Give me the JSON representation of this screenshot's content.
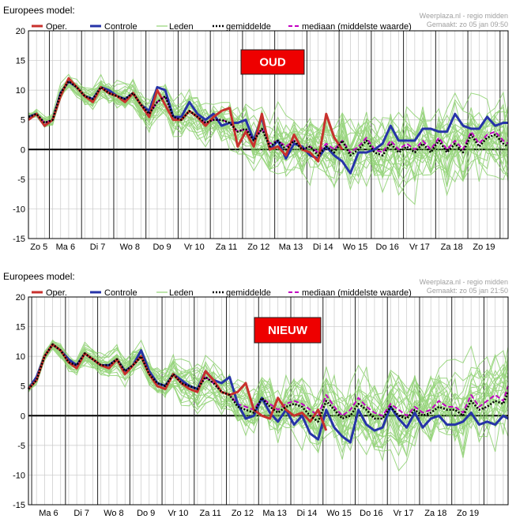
{
  "colors": {
    "oper": "#c8312d",
    "controle": "#2633a8",
    "leden": "#7ccb5a",
    "gemiddelde": "#000000",
    "mediaan": "#c200c2",
    "badge": "#ee0000",
    "grid_major": "#222222",
    "grid_minor": "#c8c8c8"
  },
  "legend": {
    "oper": "Oper.",
    "controle": "Controle",
    "leden": "Leden",
    "gemiddelde": "gemiddelde",
    "mediaan": "mediaan (middelste waarde)"
  },
  "chart_data": [
    {
      "type": "line",
      "title": "Europees model:",
      "badge": "OUD",
      "source": "Weerplaza.nl - regio midden",
      "issued": "Gemaakt: zo 05 jan 09:50",
      "ylim": [
        -15,
        20
      ],
      "yticks": [
        20,
        15,
        10,
        5,
        0,
        -5,
        -10,
        -15
      ],
      "xlim": [
        0,
        14.9
      ],
      "day_labels": [
        "Zo 5",
        "Ma 6",
        "Di 7",
        "Wo 8",
        "Do 9",
        "Vr 10",
        "Za 11",
        "Zo 12",
        "Ma 13",
        "Di 14",
        "Wo 15",
        "Do 16",
        "Vr 17",
        "Za 18",
        "Zo 19"
      ],
      "major_x": [
        0.65,
        1.65,
        2.65,
        3.65,
        4.65,
        5.65,
        6.65,
        7.65,
        8.65,
        9.65,
        10.65,
        11.65,
        12.65,
        13.65,
        14.65
      ],
      "series": [
        {
          "name": "Oper.",
          "x": [
            0,
            0.25,
            0.5,
            0.75,
            1,
            1.25,
            1.5,
            1.75,
            2,
            2.25,
            2.5,
            2.75,
            3,
            3.25,
            3.5,
            3.75,
            4,
            4.25,
            4.5,
            4.75,
            5,
            5.25,
            5.5,
            5.75,
            6,
            6.25,
            6.5,
            6.75,
            7,
            7.25,
            7.5,
            7.75,
            8,
            8.25,
            8.5,
            8.75,
            9,
            9.25,
            9.5,
            9.75
          ],
          "values": [
            5,
            6,
            4,
            5,
            9,
            12,
            10.5,
            9,
            8,
            10.5,
            9.5,
            9,
            8,
            9.5,
            7.5,
            5.5,
            10,
            7.5,
            5,
            5,
            6.5,
            5.5,
            4,
            5.5,
            6.5,
            7,
            0.5,
            3,
            0.5,
            6,
            0,
            0.5,
            -1,
            2.5,
            0,
            -0.5,
            -2,
            6,
            2,
            0
          ]
        },
        {
          "name": "Controle",
          "x": [
            0,
            0.25,
            0.5,
            0.75,
            1,
            1.25,
            1.5,
            1.75,
            2,
            2.25,
            2.5,
            2.75,
            3,
            3.25,
            3.5,
            3.75,
            4,
            4.25,
            4.5,
            4.75,
            5,
            5.25,
            5.5,
            5.75,
            6,
            6.25,
            6.5,
            6.75,
            7,
            7.25,
            7.5,
            7.75,
            8,
            8.25,
            8.5,
            8.75,
            9,
            9.25,
            9.5,
            9.75,
            10,
            10.25,
            10.5,
            10.75,
            11,
            11.25,
            11.5,
            11.75,
            12,
            12.25,
            12.5,
            12.75,
            13,
            13.25,
            13.5,
            13.75,
            14,
            14.25,
            14.5,
            14.75,
            14.9
          ],
          "values": [
            5.5,
            6,
            4,
            5,
            9.5,
            11.5,
            10.5,
            9,
            8.5,
            10.5,
            10,
            9,
            8.5,
            9.5,
            7.5,
            6.5,
            10.5,
            10,
            5.5,
            5.5,
            8,
            6,
            5,
            6,
            4,
            4.5,
            4.5,
            5,
            1.5,
            5.5,
            0,
            1.5,
            -1.5,
            1,
            0.5,
            -1,
            -1.5,
            0.5,
            -1,
            -2,
            -4,
            -0.5,
            -0.5,
            0,
            1,
            4,
            1.5,
            1.5,
            1.5,
            3.5,
            3.5,
            3,
            3,
            6,
            4,
            3.5,
            3.5,
            5.5,
            4,
            4.5,
            4.5
          ]
        },
        {
          "name": "gemiddelde",
          "x": [
            0,
            0.25,
            0.5,
            0.75,
            1,
            1.25,
            1.5,
            1.75,
            2,
            2.25,
            2.5,
            2.75,
            3,
            3.25,
            3.5,
            3.75,
            4,
            4.25,
            4.5,
            4.75,
            5,
            5.25,
            5.5,
            5.75,
            6,
            6.25,
            6.5,
            6.75,
            7,
            7.25,
            7.5,
            7.75,
            8,
            8.25,
            8.5,
            8.75,
            9,
            9.25,
            9.5,
            9.75,
            10,
            10.25,
            10.5,
            10.75,
            11,
            11.25,
            11.5,
            11.75,
            12,
            12.25,
            12.5,
            12.75,
            13,
            13.25,
            13.5,
            13.75,
            14,
            14.25,
            14.5,
            14.75,
            14.9
          ],
          "values": [
            5.5,
            6,
            4.5,
            5,
            9.5,
            11.5,
            10.5,
            9,
            8.5,
            10.5,
            9.5,
            9,
            8.5,
            9.5,
            7.5,
            6,
            8,
            9,
            5.5,
            5,
            6.5,
            5.5,
            4.5,
            5,
            5,
            4.5,
            3,
            3.5,
            1.5,
            3.5,
            0.5,
            1.5,
            0,
            1.5,
            0,
            0.5,
            -1,
            0.5,
            -0.5,
            1.5,
            -1,
            0,
            1.5,
            -0.5,
            -1,
            1,
            -0.5,
            0.5,
            -0.5,
            1,
            -0.5,
            1.5,
            -0.5,
            1,
            -0.5,
            2.5,
            0.5,
            2,
            2.5,
            1,
            0.5
          ]
        },
        {
          "name": "mediaan (middelste waarde)",
          "x": [
            0,
            0.25,
            0.5,
            0.75,
            1,
            1.25,
            1.5,
            1.75,
            2,
            2.25,
            2.5,
            2.75,
            3,
            3.25,
            3.5,
            3.75,
            4,
            4.25,
            4.5,
            4.75,
            5,
            5.25,
            5.5,
            5.75,
            6,
            6.25,
            6.5,
            6.75,
            7,
            7.25,
            7.5,
            7.75,
            8,
            8.25,
            8.5,
            8.75,
            9,
            9.25,
            9.5,
            9.75,
            10,
            10.25,
            10.5,
            10.75,
            11,
            11.25,
            11.5,
            11.75,
            12,
            12.25,
            12.5,
            12.75,
            13,
            13.25,
            13.5,
            13.75,
            14,
            14.25,
            14.5,
            14.75,
            14.9
          ],
          "values": [
            5.5,
            6,
            4.5,
            5,
            9.5,
            11.5,
            10.5,
            9,
            8.5,
            10.5,
            9.5,
            9,
            8.5,
            9.5,
            7.5,
            6,
            8,
            9,
            5.5,
            5,
            6.5,
            5.5,
            4.5,
            5,
            5,
            4.5,
            3,
            3.5,
            1.5,
            3.5,
            1,
            1.5,
            0.5,
            1.5,
            0,
            0.5,
            -0.5,
            1,
            0,
            1.5,
            -0.5,
            0.5,
            2,
            0,
            -0.5,
            1.5,
            0,
            1,
            0,
            1.5,
            0,
            2,
            0,
            1.5,
            0,
            3,
            1,
            2.5,
            3,
            1.5,
            1
          ]
        }
      ]
    },
    {
      "type": "line",
      "title": "Europees model:",
      "badge": "NIEUW",
      "source": "Weerplaza.nl - regio midden",
      "issued": "Gemaakt: zo 05 jan 21:50",
      "ylim": [
        -15,
        20
      ],
      "yticks": [
        20,
        15,
        10,
        5,
        0,
        -5,
        -10,
        -15
      ],
      "xlim": [
        0,
        14.9
      ],
      "day_labels": [
        "Ma 6",
        "Di 7",
        "Wo 8",
        "Do 9",
        "Vr 10",
        "Za 11",
        "Zo 12",
        "Ma 13",
        "Di 14",
        "Wo 15",
        "Do 16",
        "Vr 17",
        "Za 18",
        "Zo 19"
      ],
      "major_x": [
        0.1,
        1.15,
        2.15,
        3.15,
        4.15,
        5.15,
        6.15,
        7.15,
        8.15,
        9.15,
        10.15,
        11.15,
        12.15,
        13.15,
        14.15
      ],
      "series": [
        {
          "name": "Oper.",
          "x": [
            0,
            0.25,
            0.5,
            0.75,
            1,
            1.25,
            1.5,
            1.75,
            2,
            2.25,
            2.5,
            2.75,
            3,
            3.25,
            3.5,
            3.75,
            4,
            4.25,
            4.5,
            4.75,
            5,
            5.25,
            5.5,
            5.75,
            6,
            6.25,
            6.5,
            6.75,
            7,
            7.25,
            7.5,
            7.75,
            8,
            8.25,
            8.5,
            8.75,
            9,
            9.25
          ],
          "values": [
            4.5,
            6,
            10,
            12,
            11,
            9,
            8,
            10.5,
            9.5,
            8.5,
            8,
            9.5,
            7,
            8.5,
            10,
            7,
            5,
            4.5,
            7,
            5.5,
            4.5,
            4,
            7.5,
            6,
            4,
            3.5,
            4,
            5.5,
            1,
            0,
            -0.5,
            3,
            1,
            0,
            0.5,
            -1,
            1,
            -2.5
          ]
        },
        {
          "name": "Controle",
          "x": [
            0,
            0.25,
            0.5,
            0.75,
            1,
            1.25,
            1.5,
            1.75,
            2,
            2.25,
            2.5,
            2.75,
            3,
            3.25,
            3.5,
            3.75,
            4,
            4.25,
            4.5,
            4.75,
            5,
            5.25,
            5.5,
            5.75,
            6,
            6.25,
            6.5,
            6.75,
            7,
            7.25,
            7.5,
            7.75,
            8,
            8.25,
            8.5,
            8.75,
            9,
            9.25,
            9.5,
            9.75,
            10,
            10.25,
            10.5,
            10.75,
            11,
            11.25,
            11.5,
            11.75,
            12,
            12.25,
            12.5,
            12.75,
            13,
            13.25,
            13.5,
            13.75,
            14,
            14.25,
            14.5,
            14.75,
            14.9
          ],
          "values": [
            4.5,
            6.5,
            10,
            12,
            11,
            9.5,
            8.5,
            10.5,
            9.5,
            8.5,
            8.5,
            9.5,
            7.5,
            8.5,
            11,
            7.5,
            5.5,
            5,
            7,
            6,
            5,
            4.5,
            7.5,
            6,
            5.5,
            6.5,
            2,
            -0.5,
            0,
            3,
            0.5,
            -1,
            1,
            -1.5,
            0,
            -3,
            -4,
            1,
            -2,
            -3.5,
            -4.5,
            1,
            -1.5,
            -2.5,
            -2,
            1.5,
            -0.5,
            -2,
            0.5,
            -2,
            -0.5,
            0,
            -1.5,
            -1.5,
            -1,
            0.5,
            -1.5,
            -1,
            -1.5,
            0,
            -0.5
          ]
        },
        {
          "name": "gemiddelde",
          "x": [
            0,
            0.25,
            0.5,
            0.75,
            1,
            1.25,
            1.5,
            1.75,
            2,
            2.25,
            2.5,
            2.75,
            3,
            3.25,
            3.5,
            3.75,
            4,
            4.25,
            4.5,
            4.75,
            5,
            5.25,
            5.5,
            5.75,
            6,
            6.25,
            6.5,
            6.75,
            7,
            7.25,
            7.5,
            7.75,
            8,
            8.25,
            8.5,
            8.75,
            9,
            9.25,
            9.5,
            9.75,
            10,
            10.25,
            10.5,
            10.75,
            11,
            11.25,
            11.5,
            11.75,
            12,
            12.25,
            12.5,
            12.75,
            13,
            13.25,
            13.5,
            13.75,
            14,
            14.25,
            14.5,
            14.75,
            14.9
          ],
          "values": [
            4.5,
            6,
            10,
            12,
            11,
            9,
            8.5,
            10.5,
            9.5,
            8.5,
            8.5,
            9.5,
            7.5,
            8.5,
            10,
            7,
            5.5,
            5,
            7,
            5.5,
            5,
            4.5,
            6.5,
            5.5,
            4,
            3.5,
            1.5,
            1,
            0.5,
            3,
            1.5,
            0.5,
            1.5,
            2,
            1.5,
            0,
            -1,
            2.5,
            1,
            -0.5,
            0,
            2,
            1,
            -0.5,
            -0.5,
            1.5,
            0,
            -0.5,
            1,
            0,
            0.5,
            1.5,
            1,
            1,
            0,
            2.5,
            1,
            1.5,
            2.5,
            2,
            4
          ]
        },
        {
          "name": "mediaan (middelste waarde)",
          "x": [
            0,
            0.25,
            0.5,
            0.75,
            1,
            1.25,
            1.5,
            1.75,
            2,
            2.25,
            2.5,
            2.75,
            3,
            3.25,
            3.5,
            3.75,
            4,
            4.25,
            4.5,
            4.75,
            5,
            5.25,
            5.5,
            5.75,
            6,
            6.25,
            6.5,
            6.75,
            7,
            7.25,
            7.5,
            7.75,
            8,
            8.25,
            8.5,
            8.75,
            9,
            9.25,
            9.5,
            9.75,
            10,
            10.25,
            10.5,
            10.75,
            11,
            11.25,
            11.5,
            11.75,
            12,
            12.25,
            12.5,
            12.75,
            13,
            13.25,
            13.5,
            13.75,
            14,
            14.25,
            14.5,
            14.75,
            14.9
          ],
          "values": [
            4.5,
            6,
            10,
            12,
            11,
            9,
            8.5,
            10.5,
            9.5,
            8.5,
            8.5,
            9.5,
            7.5,
            8.5,
            10,
            7,
            5.5,
            5,
            7,
            5.5,
            5,
            4.5,
            6.5,
            5.5,
            4,
            3.5,
            2,
            1.5,
            1,
            3,
            2,
            1,
            2,
            2.5,
            2,
            1,
            0,
            3.5,
            1.5,
            0,
            1,
            3,
            1.5,
            0.5,
            0,
            2,
            1,
            0,
            1.5,
            0.5,
            1,
            2.5,
            1.5,
            1.5,
            0.5,
            3.5,
            1.5,
            2.5,
            3.5,
            2.5,
            5
          ]
        }
      ]
    }
  ]
}
